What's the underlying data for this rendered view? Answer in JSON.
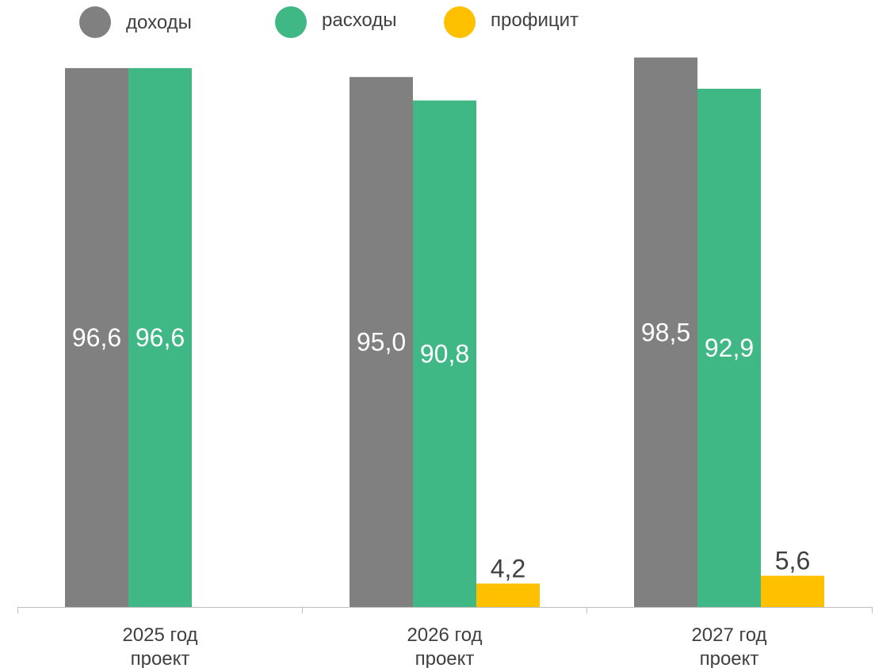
{
  "chart_data": {
    "type": "bar",
    "categories": [
      [
        "2025 год",
        "проект"
      ],
      [
        "2026 год",
        "проект"
      ],
      [
        "2027 год",
        "проект"
      ]
    ],
    "series": [
      {
        "name": "доходы",
        "color": "#808080",
        "values": [
          96.6,
          95.0,
          98.5
        ],
        "labels": [
          "96,6",
          "95,0",
          "98,5"
        ]
      },
      {
        "name": "расходы",
        "color": "#3fb886",
        "values": [
          96.6,
          90.8,
          92.9
        ],
        "labels": [
          "96,6",
          "90,8",
          "92,9"
        ]
      },
      {
        "name": "профицит",
        "color": "#ffc000",
        "values": [
          null,
          4.2,
          5.6
        ],
        "labels": [
          null,
          "4,2",
          "5,6"
        ]
      }
    ],
    "ylim": [
      0,
      100
    ],
    "legend_position": "top",
    "grid": false
  }
}
